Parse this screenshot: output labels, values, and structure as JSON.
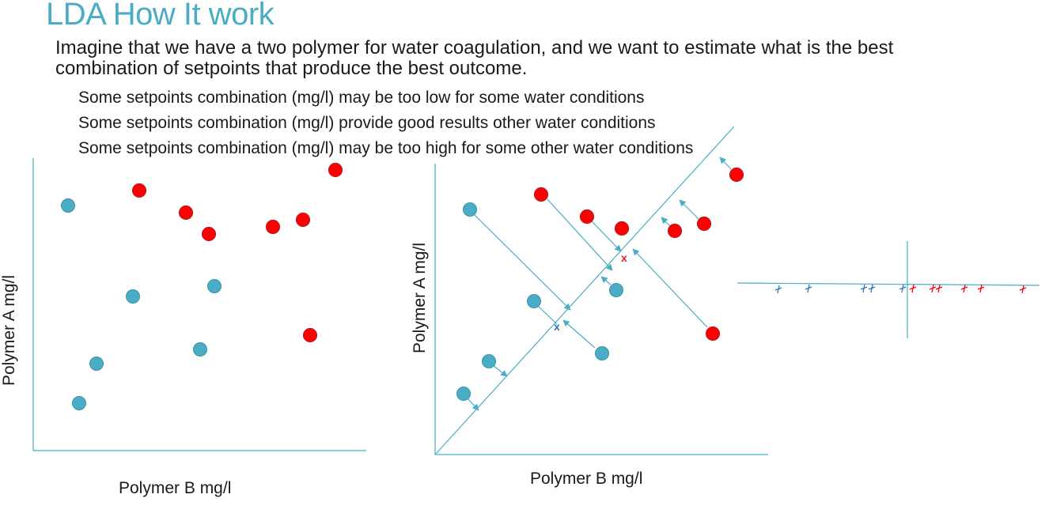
{
  "slide": {
    "title": "LDA How It work",
    "intro": "Imagine that we have a two polymer for water coagulation, and we want to estimate what is the best combination of setpoints that produce the best outcome.",
    "bullets": [
      "Some setpoints combination (mg/l) may be too low for some water conditions",
      "Some setpoints combination (mg/l) provide good results other water conditions",
      "Some setpoints combination (mg/l) may be too high for some other water conditions"
    ]
  },
  "plot_left": {
    "xlabel": "Polymer B mg/l",
    "ylabel": "Polymer A mg/l"
  },
  "plot_middle": {
    "xlabel": "Polymer B mg/l",
    "ylabel": "Polymer A mg/l",
    "mean_marker": "x"
  },
  "colors": {
    "blue_class": "#4bacc6",
    "red_class": "#ff0000",
    "axis": "#4bacc6",
    "text_blue": "#4bacc6",
    "arrow": "#4bacc6",
    "tick_blue": "#2e75b6",
    "tick_red": "#ff0000"
  }
}
